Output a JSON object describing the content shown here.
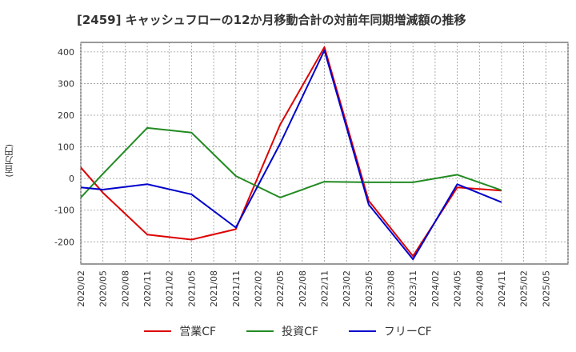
{
  "chart_data": {
    "type": "line",
    "title": "[2459]  キャッシュフローの12か月移動合計の対前年同期増減額の推移",
    "ylabel": "(百万円)",
    "xlabel": "",
    "ylim": [
      -270,
      430
    ],
    "yticks": [
      400,
      300,
      200,
      100,
      0,
      -100,
      -200
    ],
    "x": [
      "2020/02",
      "2020/05",
      "2020/08",
      "2020/11",
      "2021/02",
      "2021/05",
      "2021/08",
      "2021/11",
      "2022/02",
      "2022/05",
      "2022/08",
      "2022/11",
      "2023/02",
      "2023/05",
      "2023/08",
      "2023/11",
      "2024/02",
      "2024/05",
      "2024/08",
      "2024/11",
      "2025/02",
      "2025/05"
    ],
    "grid": true,
    "legend_position": "bottom",
    "series": [
      {
        "name": "営業CF",
        "color": "#dd0000",
        "values": [
          35,
          -45,
          null,
          -177,
          null,
          -193,
          null,
          -160,
          null,
          170,
          null,
          415,
          null,
          -70,
          null,
          -245,
          null,
          -28,
          null,
          -38,
          null,
          null
        ]
      },
      {
        "name": "投資CF",
        "color": "#228b22",
        "values": [
          -60,
          15,
          null,
          160,
          null,
          145,
          null,
          8,
          null,
          -60,
          null,
          -10,
          null,
          -12,
          null,
          -12,
          null,
          12,
          null,
          -37,
          null,
          null
        ]
      },
      {
        "name": "フリーCF",
        "color": "#0000cc",
        "values": [
          -28,
          -35,
          null,
          -18,
          null,
          -50,
          null,
          -155,
          null,
          110,
          null,
          405,
          null,
          -82,
          null,
          -255,
          null,
          -18,
          null,
          -75,
          null,
          null
        ]
      }
    ]
  }
}
